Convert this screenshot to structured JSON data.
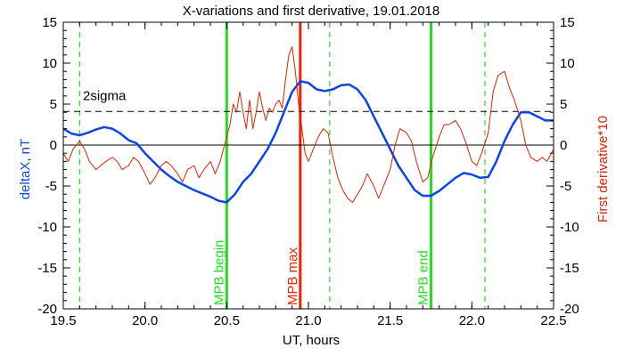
{
  "chart_data": {
    "type": "line",
    "title": "X-variations and first derivative, 19.01.2018",
    "xlabel": "UT, hours",
    "ylabel_left": "deltaX, nT",
    "ylabel_right": "First derivative*10",
    "xlim": [
      19.5,
      22.5
    ],
    "ylim": [
      -20,
      15
    ],
    "x_ticks": [
      "19.5",
      "20.0",
      "20.5",
      "21.0",
      "21.5",
      "22.0",
      "22.5"
    ],
    "y_ticks": [
      "15",
      "10",
      "5",
      "0",
      "-5",
      "-10",
      "-15",
      "-20"
    ],
    "colors": {
      "deltaX": "#0a46e6",
      "derivative": "#dd2200",
      "mpb_edge": "#22dd22",
      "mpb_max": "#ee2200"
    },
    "zero_line": 0,
    "sigma": {
      "label": "2sigma",
      "value": 4.1
    },
    "vlines": [
      {
        "x": 20.5,
        "label": "MPB begin",
        "color": "#22dd22",
        "style": "solid"
      },
      {
        "x": 20.95,
        "label": "MPB max",
        "color": "#ee2200",
        "style": "solid"
      },
      {
        "x": 21.75,
        "label": "MPB end",
        "color": "#22dd22",
        "style": "solid"
      },
      {
        "x": 19.6,
        "label": "",
        "color": "#22dd22",
        "style": "dashed"
      },
      {
        "x": 21.13,
        "label": "",
        "color": "#22dd22",
        "style": "dashed"
      },
      {
        "x": 22.08,
        "label": "",
        "color": "#22dd22",
        "style": "dashed"
      }
    ],
    "series": [
      {
        "key": "deltaX",
        "x": [
          19.5,
          19.55,
          19.6,
          19.65,
          19.7,
          19.75,
          19.8,
          19.85,
          19.9,
          19.95,
          20.0,
          20.05,
          20.1,
          20.15,
          20.2,
          20.25,
          20.3,
          20.35,
          20.4,
          20.45,
          20.5,
          20.55,
          20.6,
          20.65,
          20.7,
          20.75,
          20.8,
          20.85,
          20.9,
          20.95,
          21.0,
          21.05,
          21.1,
          21.15,
          21.2,
          21.25,
          21.3,
          21.35,
          21.4,
          21.45,
          21.5,
          21.55,
          21.6,
          21.65,
          21.7,
          21.75,
          21.8,
          21.85,
          21.9,
          21.95,
          22.0,
          22.05,
          22.1,
          22.15,
          22.2,
          22.25,
          22.3,
          22.35,
          22.4,
          22.45,
          22.5
        ],
        "values": [
          2.0,
          1.4,
          1.2,
          1.5,
          1.9,
          2.2,
          2.0,
          1.4,
          0.6,
          0.2,
          -1.0,
          -2.0,
          -3.0,
          -3.8,
          -4.5,
          -5.0,
          -5.5,
          -5.9,
          -6.3,
          -6.8,
          -7.0,
          -6.0,
          -4.5,
          -3.5,
          -2.0,
          -0.5,
          1.5,
          4.0,
          6.5,
          7.8,
          7.6,
          6.8,
          6.6,
          6.8,
          7.3,
          7.4,
          6.8,
          5.5,
          3.5,
          1.5,
          -0.5,
          -2.5,
          -4.0,
          -5.5,
          -6.2,
          -6.2,
          -5.6,
          -4.8,
          -4.0,
          -3.4,
          -3.6,
          -4.0,
          -3.9,
          -2.0,
          0.5,
          2.5,
          4.0,
          4.0,
          3.5,
          3.0,
          3.0
        ]
      },
      {
        "key": "derivative",
        "x": [
          19.5,
          19.53,
          19.56,
          19.6,
          19.63,
          19.66,
          19.7,
          19.73,
          19.76,
          19.8,
          19.83,
          19.86,
          19.9,
          19.93,
          19.96,
          20.0,
          20.03,
          20.06,
          20.1,
          20.13,
          20.16,
          20.2,
          20.23,
          20.26,
          20.3,
          20.33,
          20.36,
          20.4,
          20.43,
          20.46,
          20.5,
          20.52,
          20.54,
          20.56,
          20.58,
          20.6,
          20.62,
          20.64,
          20.66,
          20.68,
          20.7,
          20.72,
          20.74,
          20.76,
          20.78,
          20.8,
          20.82,
          20.84,
          20.86,
          20.88,
          20.9,
          20.92,
          20.94,
          20.96,
          20.98,
          21.0,
          21.03,
          21.06,
          21.09,
          21.12,
          21.15,
          21.18,
          21.21,
          21.24,
          21.27,
          21.3,
          21.33,
          21.36,
          21.4,
          21.43,
          21.46,
          21.5,
          21.53,
          21.56,
          21.6,
          21.63,
          21.66,
          21.7,
          21.73,
          21.76,
          21.8,
          21.83,
          21.86,
          21.9,
          21.93,
          21.96,
          22.0,
          22.03,
          22.06,
          22.1,
          22.13,
          22.16,
          22.2,
          22.23,
          22.26,
          22.3,
          22.33,
          22.36,
          22.4,
          22.43,
          22.46,
          22.5
        ],
        "values": [
          -1.0,
          -2.0,
          -0.5,
          0.5,
          -0.5,
          -2.0,
          -3.0,
          -2.5,
          -2.0,
          -1.5,
          -2.0,
          -3.0,
          -2.5,
          -1.5,
          -2.0,
          -3.5,
          -4.8,
          -4.0,
          -2.5,
          -2.0,
          -2.5,
          -3.5,
          -4.5,
          -3.0,
          -2.5,
          -4.0,
          -3.0,
          -2.0,
          -3.5,
          -2.0,
          1.0,
          2.5,
          5.0,
          4.0,
          6.5,
          4.0,
          2.0,
          5.5,
          2.0,
          4.0,
          6.5,
          4.5,
          3.0,
          4.5,
          4.0,
          5.0,
          5.5,
          4.5,
          8.0,
          11.0,
          12.0,
          9.0,
          5.0,
          2.0,
          -1.0,
          -2.0,
          -0.5,
          1.0,
          2.0,
          1.5,
          -1.5,
          -4.0,
          -5.5,
          -6.5,
          -7.0,
          -6.0,
          -5.0,
          -3.5,
          -5.0,
          -6.5,
          -5.0,
          -3.0,
          0.0,
          2.0,
          1.5,
          0.5,
          -2.0,
          -4.5,
          -4.0,
          -1.5,
          1.0,
          2.5,
          2.5,
          3.0,
          2.0,
          0.5,
          -2.0,
          -2.5,
          -1.0,
          1.5,
          6.5,
          8.5,
          9.0,
          7.0,
          5.5,
          3.0,
          0.0,
          -1.5,
          -2.0,
          -1.5,
          -2.0,
          -0.5
        ]
      }
    ]
  }
}
